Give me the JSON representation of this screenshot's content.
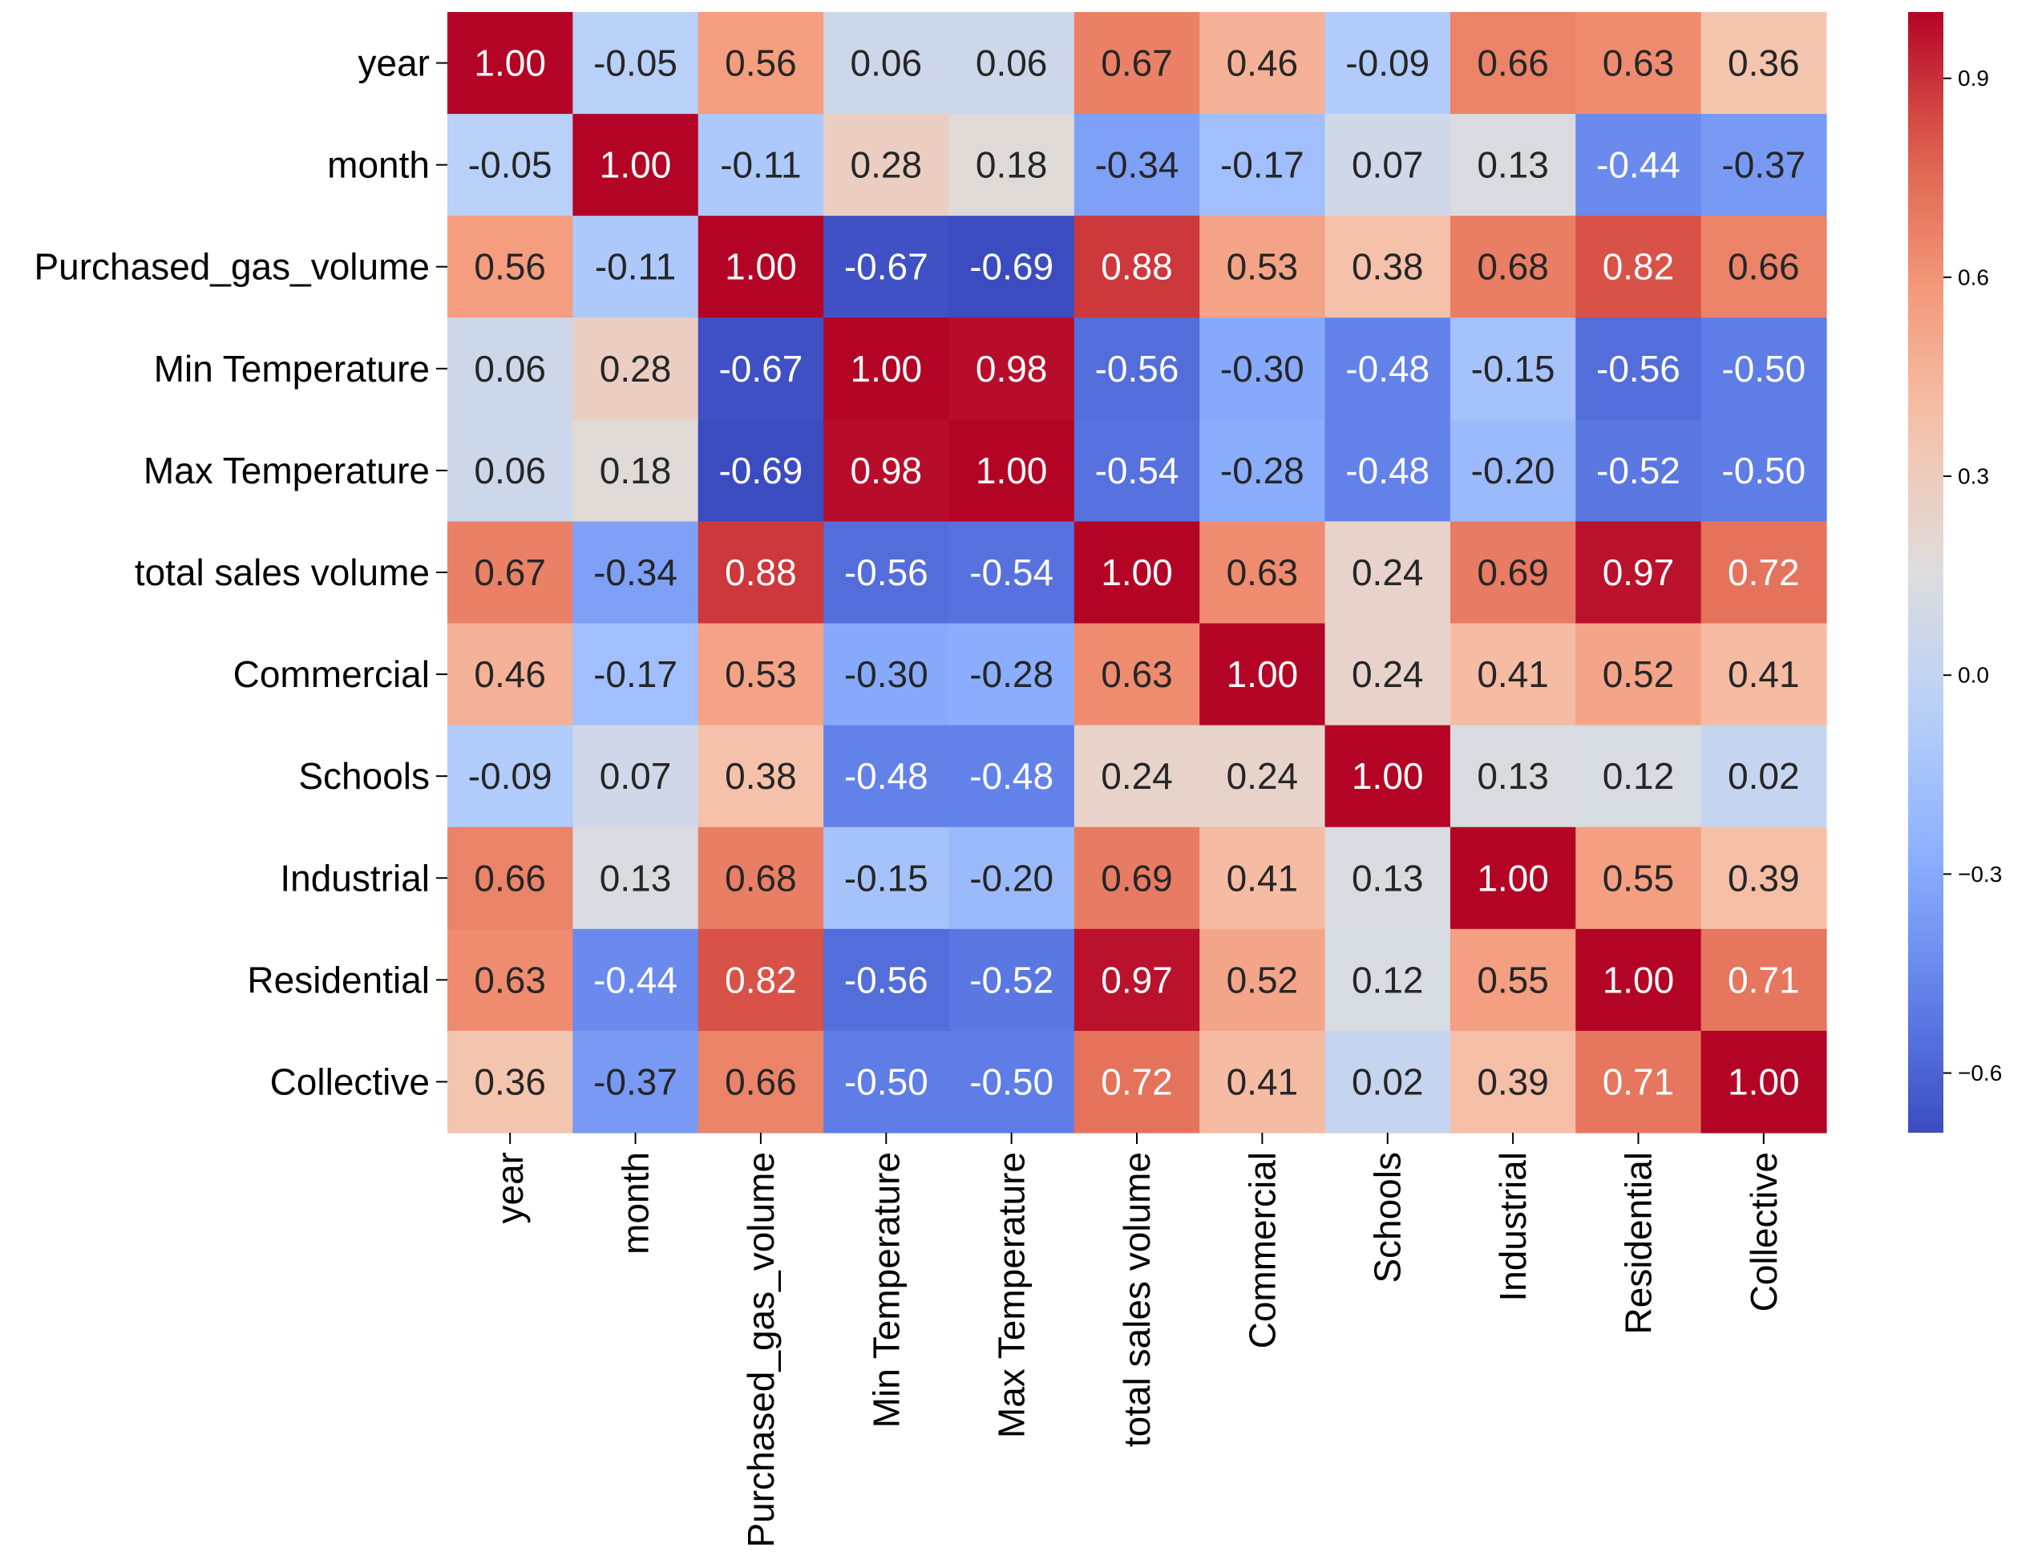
{
  "chart_data": {
    "type": "heatmap",
    "title": "",
    "xlabel": "",
    "ylabel": "",
    "row_labels": [
      "year",
      "month",
      "Purchased_gas_volume",
      "Min Temperature",
      "Max Temperature",
      "total sales volume",
      "Commercial",
      "Schools",
      "Industrial",
      "Residential",
      "Collective"
    ],
    "col_labels": [
      "year",
      "month",
      "Purchased_gas_volume",
      "Min Temperature",
      "Max Temperature",
      "total sales volume",
      "Commercial",
      "Schools",
      "Industrial",
      "Residential",
      "Collective"
    ],
    "values": [
      [
        1.0,
        -0.05,
        0.56,
        0.06,
        0.06,
        0.67,
        0.46,
        -0.09,
        0.66,
        0.63,
        0.36
      ],
      [
        -0.05,
        1.0,
        -0.11,
        0.28,
        0.18,
        -0.34,
        -0.17,
        0.07,
        0.13,
        -0.44,
        -0.37
      ],
      [
        0.56,
        -0.11,
        1.0,
        -0.67,
        -0.69,
        0.88,
        0.53,
        0.38,
        0.68,
        0.82,
        0.66
      ],
      [
        0.06,
        0.28,
        -0.67,
        1.0,
        0.98,
        -0.56,
        -0.3,
        -0.48,
        -0.15,
        -0.56,
        -0.5
      ],
      [
        0.06,
        0.18,
        -0.69,
        0.98,
        1.0,
        -0.54,
        -0.28,
        -0.48,
        -0.2,
        -0.52,
        -0.5
      ],
      [
        0.67,
        -0.34,
        0.88,
        -0.56,
        -0.54,
        1.0,
        0.63,
        0.24,
        0.69,
        0.97,
        0.72
      ],
      [
        0.46,
        -0.17,
        0.53,
        -0.3,
        -0.28,
        0.63,
        1.0,
        0.24,
        0.41,
        0.52,
        0.41
      ],
      [
        -0.09,
        0.07,
        0.38,
        -0.48,
        -0.48,
        0.24,
        0.24,
        1.0,
        0.13,
        0.12,
        0.02
      ],
      [
        0.66,
        0.13,
        0.68,
        -0.15,
        -0.2,
        0.69,
        0.41,
        0.13,
        1.0,
        0.55,
        0.39
      ],
      [
        0.63,
        -0.44,
        0.82,
        -0.56,
        -0.52,
        0.97,
        0.52,
        0.12,
        0.55,
        1.0,
        0.71
      ],
      [
        0.36,
        -0.37,
        0.66,
        -0.5,
        -0.5,
        0.72,
        0.41,
        0.02,
        0.39,
        0.71,
        1.0
      ]
    ],
    "colormap": "coolwarm",
    "value_range": [
      -0.69,
      1.0
    ],
    "colorbar": {
      "ticks": [
        0.9,
        0.6,
        0.3,
        0.0,
        -0.3,
        -0.6
      ],
      "tick_labels": [
        "0.9",
        "0.6",
        "0.3",
        "0.0",
        "−0.3",
        "−0.6"
      ],
      "placement": "right"
    },
    "annotations": "cell values shown with two decimals",
    "grid": false
  }
}
